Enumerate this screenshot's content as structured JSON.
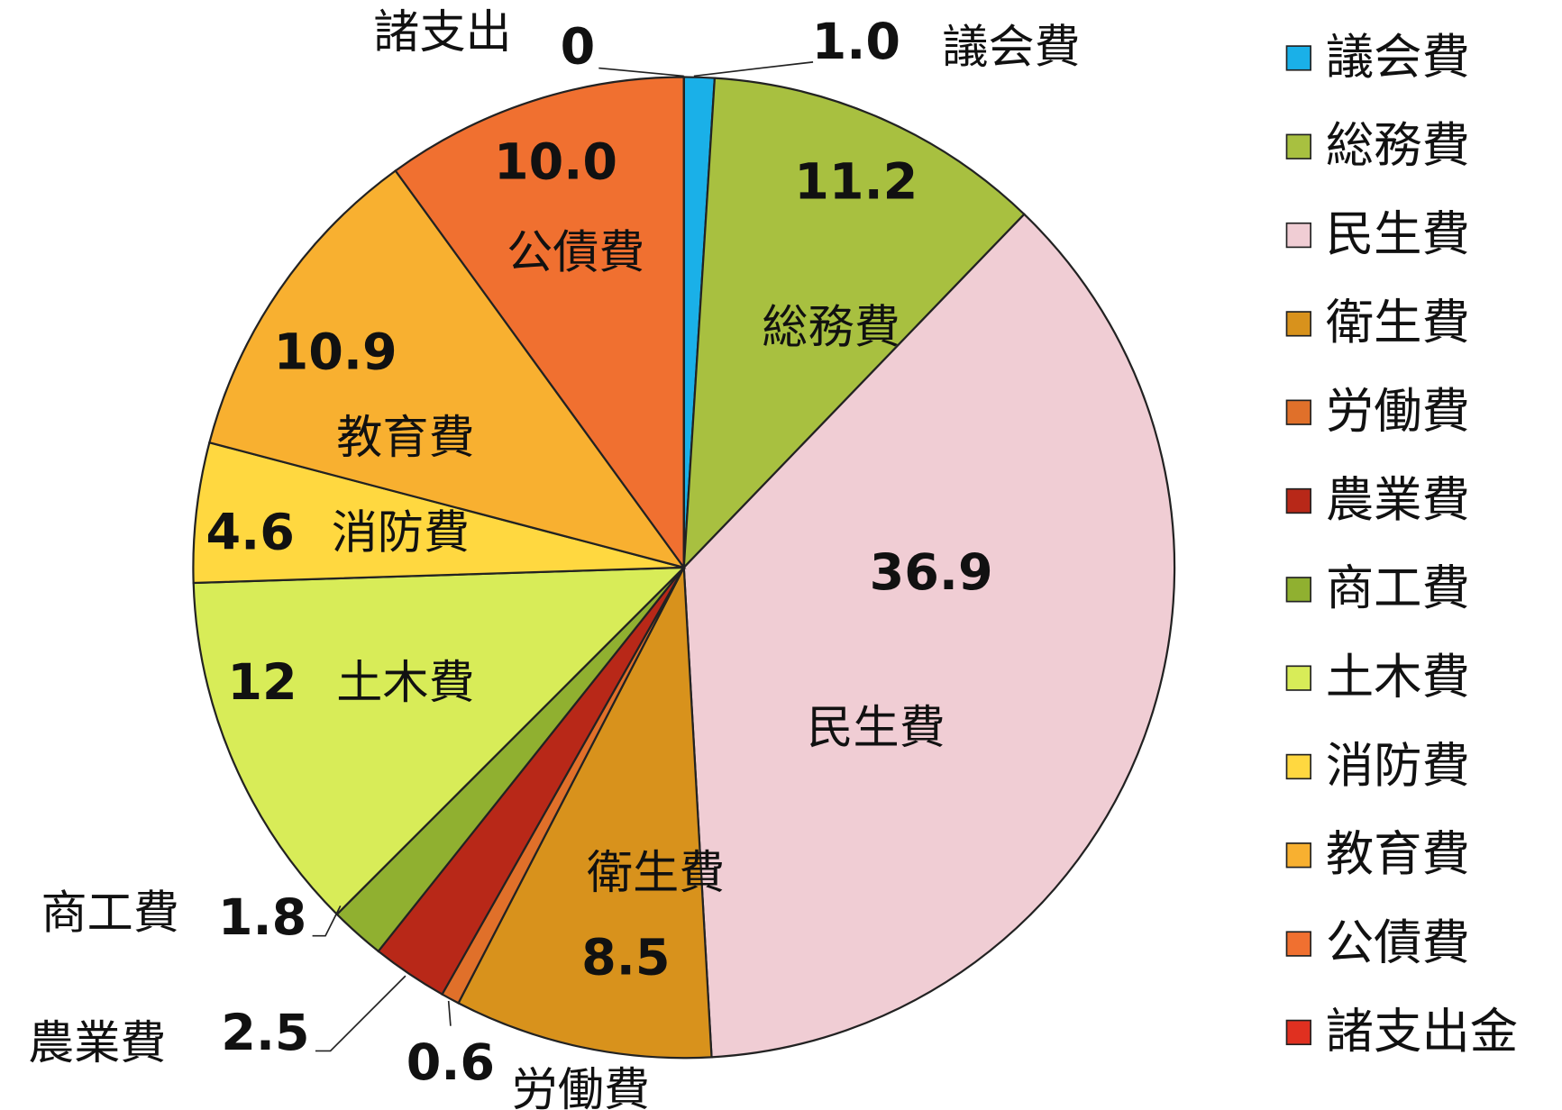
{
  "chart_data": {
    "type": "pie",
    "categories": [
      "議会費",
      "総務費",
      "民生費",
      "衛生費",
      "労働費",
      "農業費",
      "商工費",
      "土木費",
      "消防費",
      "教育費",
      "公債費",
      "諸支出金"
    ],
    "slice_labels": [
      "議会費",
      "総務費",
      "民生費",
      "衛生費",
      "労働費",
      "農業費",
      "商工費",
      "土木費",
      "消防費",
      "教育費",
      "公債費",
      "諸支出"
    ],
    "values": [
      1.0,
      11.2,
      36.9,
      8.5,
      0.6,
      2.5,
      1.8,
      12,
      4.6,
      10.9,
      10.0,
      0
    ],
    "value_labels": [
      "1.0",
      "11.2",
      "36.9",
      "8.5",
      "0.6",
      "2.5",
      "1.8",
      "12",
      "4.6",
      "10.9",
      "10.0",
      "0"
    ],
    "colors": [
      "#1ab0e8",
      "#a8c040",
      "#f0cdd4",
      "#d8921c",
      "#e0702a",
      "#b82818",
      "#90b030",
      "#d8ec58",
      "#ffd840",
      "#f8b030",
      "#f07030",
      "#e03020"
    ],
    "legend": "right"
  }
}
